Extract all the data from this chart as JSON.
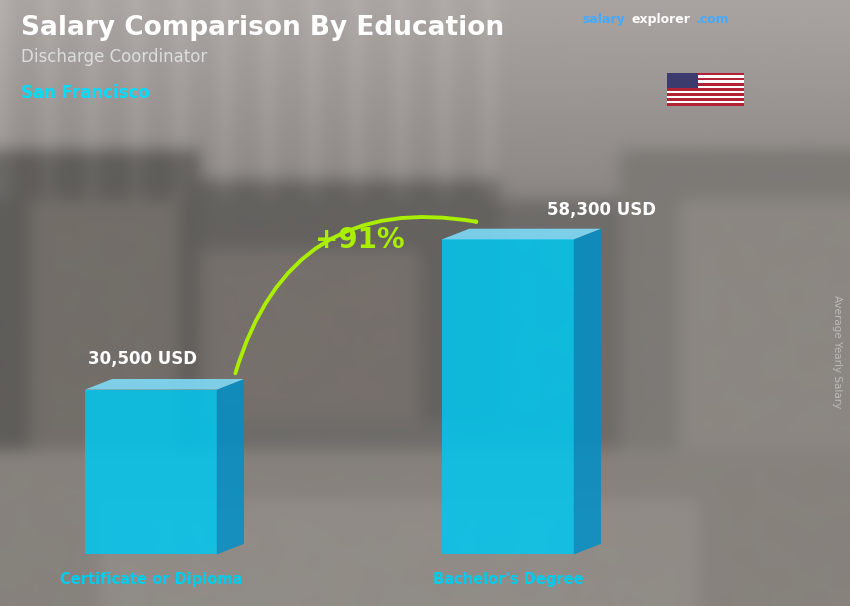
{
  "title": "Salary Comparison By Education",
  "subtitle": "Discharge Coordinator",
  "city": "San Francisco",
  "categories": [
    "Certificate or Diploma",
    "Bachelor's Degree"
  ],
  "values": [
    30500,
    58300
  ],
  "value_labels": [
    "30,500 USD",
    "58,300 USD"
  ],
  "pct_change": "+91%",
  "bar_color_front": "#00C8F0",
  "bar_color_side": "#0090C8",
  "bar_color_top": "#80E0FF",
  "title_color": "#FFFFFF",
  "subtitle_color": "#DDDDDD",
  "city_color": "#00DDFF",
  "label_color": "#FFFFFF",
  "cat_color": "#00CCEE",
  "pct_color": "#AAEE00",
  "bg_color": "#707878",
  "right_label_color": "#BBBBBB",
  "website_salary_color": "#44AAFF",
  "figsize": [
    8.5,
    6.06
  ],
  "dpi": 100
}
